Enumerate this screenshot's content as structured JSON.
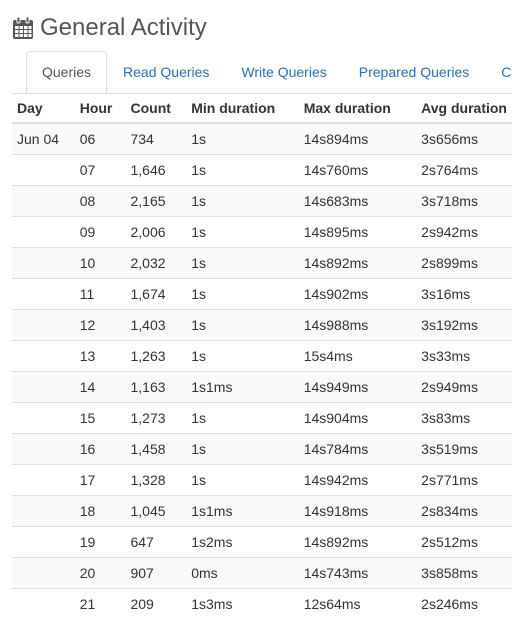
{
  "header": {
    "title": "General Activity",
    "icon": "calendar-icon"
  },
  "tabs": [
    {
      "label": "Queries",
      "active": true
    },
    {
      "label": "Read Queries",
      "active": false
    },
    {
      "label": "Write Queries",
      "active": false
    },
    {
      "label": "Prepared Queries",
      "active": false
    },
    {
      "label": "C",
      "active": false
    }
  ],
  "table": {
    "columns": [
      "Day",
      "Hour",
      "Count",
      "Min duration",
      "Max duration",
      "Avg duration"
    ],
    "rows": [
      [
        "Jun 04",
        "06",
        "734",
        "1s",
        "14s894ms",
        "3s656ms"
      ],
      [
        "",
        "07",
        "1,646",
        "1s",
        "14s760ms",
        "2s764ms"
      ],
      [
        "",
        "08",
        "2,165",
        "1s",
        "14s683ms",
        "3s718ms"
      ],
      [
        "",
        "09",
        "2,006",
        "1s",
        "14s895ms",
        "2s942ms"
      ],
      [
        "",
        "10",
        "2,032",
        "1s",
        "14s892ms",
        "2s899ms"
      ],
      [
        "",
        "11",
        "1,674",
        "1s",
        "14s902ms",
        "3s16ms"
      ],
      [
        "",
        "12",
        "1,403",
        "1s",
        "14s988ms",
        "3s192ms"
      ],
      [
        "",
        "13",
        "1,263",
        "1s",
        "15s4ms",
        "3s33ms"
      ],
      [
        "",
        "14",
        "1,163",
        "1s1ms",
        "14s949ms",
        "2s949ms"
      ],
      [
        "",
        "15",
        "1,273",
        "1s",
        "14s904ms",
        "3s83ms"
      ],
      [
        "",
        "16",
        "1,458",
        "1s",
        "14s784ms",
        "3s519ms"
      ],
      [
        "",
        "17",
        "1,328",
        "1s",
        "14s942ms",
        "2s771ms"
      ],
      [
        "",
        "18",
        "1,045",
        "1s1ms",
        "14s918ms",
        "2s834ms"
      ],
      [
        "",
        "19",
        "647",
        "1s2ms",
        "14s892ms",
        "2s512ms"
      ],
      [
        "",
        "20",
        "907",
        "0ms",
        "14s743ms",
        "3s858ms"
      ],
      [
        "",
        "21",
        "209",
        "1s3ms",
        "12s64ms",
        "2s246ms"
      ]
    ]
  },
  "colors": {
    "link": "#2a6fb6",
    "stripe": "#f9f9f9",
    "border": "#dddddd"
  }
}
